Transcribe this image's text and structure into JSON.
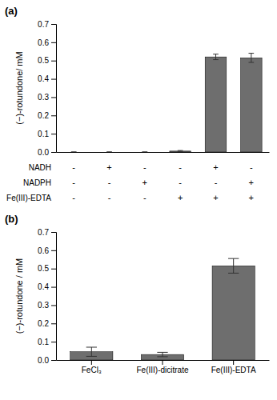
{
  "chart_data": [
    {
      "type": "bar",
      "title": "(a)",
      "ylabel": "(−)-rotundone/ mM",
      "categories": [
        null,
        null,
        null,
        null,
        null,
        null
      ],
      "values": [
        0.0,
        0.0,
        0.0,
        0.005,
        0.52,
        0.515
      ],
      "errors": [
        0.0,
        0.0,
        0.0,
        0.003,
        0.015,
        0.025
      ],
      "color": "#6e6e6e",
      "ylim": [
        0,
        0.7
      ],
      "yticks": [
        {
          "value": 0.0,
          "label": "0.0"
        },
        0.1,
        0.2,
        0.3,
        0.4,
        0.5,
        0.6,
        0.7
      ],
      "rows": [
        {
          "name": "NADH",
          "signs": [
            "-",
            "+",
            "-",
            "-",
            "+",
            "-"
          ]
        },
        {
          "name": "NADPH",
          "signs": [
            "-",
            "-",
            "+",
            "-",
            "-",
            "+"
          ]
        },
        {
          "name": "Fe(III)-EDTA",
          "signs": [
            "-",
            "-",
            "-",
            "+",
            "+",
            "+"
          ]
        }
      ]
    },
    {
      "type": "bar",
      "title": "(b)",
      "ylabel": "(−)-rotundone / mM",
      "categories": [
        "FeCl₃",
        "Fe(III)-dicitrate",
        "Fe(III)-EDTA"
      ],
      "values": [
        0.045,
        0.03,
        0.515
      ],
      "errors": [
        0.025,
        0.012,
        0.04
      ],
      "color": "#6e6e6e",
      "ylim": [
        0,
        0.7
      ],
      "yticks": [
        {
          "value": 0.0,
          "label": "0.0"
        },
        0.1,
        0.2,
        0.3,
        0.4,
        0.5,
        0.6,
        0.7
      ]
    }
  ]
}
